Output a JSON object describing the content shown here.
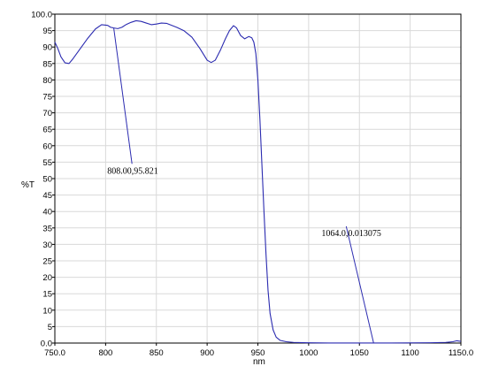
{
  "chart_data": {
    "type": "line",
    "xlabel": "nm",
    "ylabel": "%T",
    "xlim": [
      750.0,
      1150.0
    ],
    "ylim": [
      0.0,
      100.0
    ],
    "x_ticks": [
      "750.0",
      "800",
      "850",
      "900",
      "950",
      "1000",
      "1050",
      "1100",
      "1150.0"
    ],
    "y_ticks": [
      "0.0",
      "5",
      "10",
      "15",
      "20",
      "25",
      "30",
      "35",
      "40",
      "45",
      "50",
      "55",
      "60",
      "65",
      "70",
      "75",
      "80",
      "85",
      "90",
      "95",
      "100.0"
    ],
    "grid": true,
    "series": [
      {
        "color": "#2b2bb0",
        "points": [
          [
            750,
            91.5
          ],
          [
            753,
            89.5
          ],
          [
            756,
            87.0
          ],
          [
            760,
            85.2
          ],
          [
            764,
            85.0
          ],
          [
            768,
            86.5
          ],
          [
            775,
            89.5
          ],
          [
            782,
            92.5
          ],
          [
            790,
            95.5
          ],
          [
            796,
            96.8
          ],
          [
            802,
            96.6
          ],
          [
            805,
            96.0
          ],
          [
            808,
            95.8
          ],
          [
            812,
            95.6
          ],
          [
            816,
            96.0
          ],
          [
            820,
            96.8
          ],
          [
            825,
            97.5
          ],
          [
            830,
            98.0
          ],
          [
            835,
            97.8
          ],
          [
            840,
            97.3
          ],
          [
            845,
            96.8
          ],
          [
            850,
            97.0
          ],
          [
            855,
            97.3
          ],
          [
            860,
            97.2
          ],
          [
            865,
            96.6
          ],
          [
            870,
            96.0
          ],
          [
            877,
            95.0
          ],
          [
            885,
            93.0
          ],
          [
            893,
            89.5
          ],
          [
            900,
            86.0
          ],
          [
            904,
            85.3
          ],
          [
            908,
            86.0
          ],
          [
            913,
            89.0
          ],
          [
            918,
            92.5
          ],
          [
            922,
            95.0
          ],
          [
            926,
            96.5
          ],
          [
            929,
            95.8
          ],
          [
            933,
            93.5
          ],
          [
            937,
            92.5
          ],
          [
            941,
            93.2
          ],
          [
            944,
            92.8
          ],
          [
            946,
            91.5
          ],
          [
            948,
            88.0
          ],
          [
            950,
            80.0
          ],
          [
            952,
            68.0
          ],
          [
            954,
            54.0
          ],
          [
            956,
            40.0
          ],
          [
            958,
            27.0
          ],
          [
            960,
            16.0
          ],
          [
            962,
            9.0
          ],
          [
            965,
            4.0
          ],
          [
            968,
            1.8
          ],
          [
            972,
            0.8
          ],
          [
            978,
            0.4
          ],
          [
            985,
            0.2
          ],
          [
            1000,
            0.08
          ],
          [
            1020,
            0.03
          ],
          [
            1050,
            0.02
          ],
          [
            1064,
            0.013
          ],
          [
            1080,
            0.03
          ],
          [
            1100,
            0.05
          ],
          [
            1120,
            0.1
          ],
          [
            1135,
            0.2
          ],
          [
            1142,
            0.4
          ],
          [
            1146,
            0.7
          ],
          [
            1150,
            0.5
          ]
        ]
      }
    ],
    "annotations": [
      {
        "text": "808.00,95.821",
        "x": 808.0,
        "y": 95.821,
        "label_x": 826.0,
        "label_y": 54.5
      },
      {
        "text": "1064.0,0.013075",
        "x": 1064.0,
        "y": 0.013075,
        "label_x": 1037.0,
        "label_y": 35.5
      }
    ]
  }
}
